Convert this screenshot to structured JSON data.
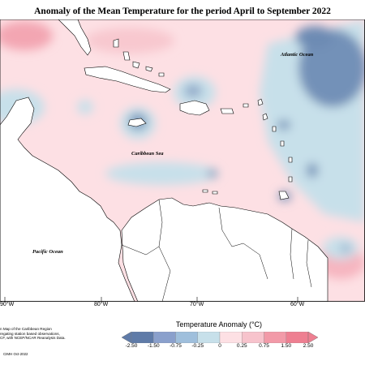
{
  "title": "Anomaly of the Mean Temperature for the period April to September 2022",
  "labels": {
    "atlantic": "Atlantic Ocean",
    "caribbean": "Caribbean Sea",
    "pacific": "Pacific Ocean"
  },
  "longitudes": [
    "90°W",
    "80°W",
    "70°W",
    "60°W"
  ],
  "legend": {
    "title": "Temperature Anomaly (°C)",
    "ticks": [
      "-2.50",
      "-1.50",
      "-0.75",
      "-0.25",
      "0",
      "0.25",
      "0.75",
      "1.50",
      "2.50"
    ],
    "colors": [
      "#5f7ba8",
      "#8aa0cc",
      "#9fbfdc",
      "#c7e0ea",
      "#ffffff",
      "#fde0e4",
      "#f7c3cc",
      "#f29aa8",
      "#ee7f91"
    ]
  },
  "caption_lines": [
    "n Map of the Caribbean Region",
    "regating station based observations,",
    "CF, with NCEP/NCAR Reanalysis Data."
  ],
  "copyright": "CIMH Oct-2022"
}
